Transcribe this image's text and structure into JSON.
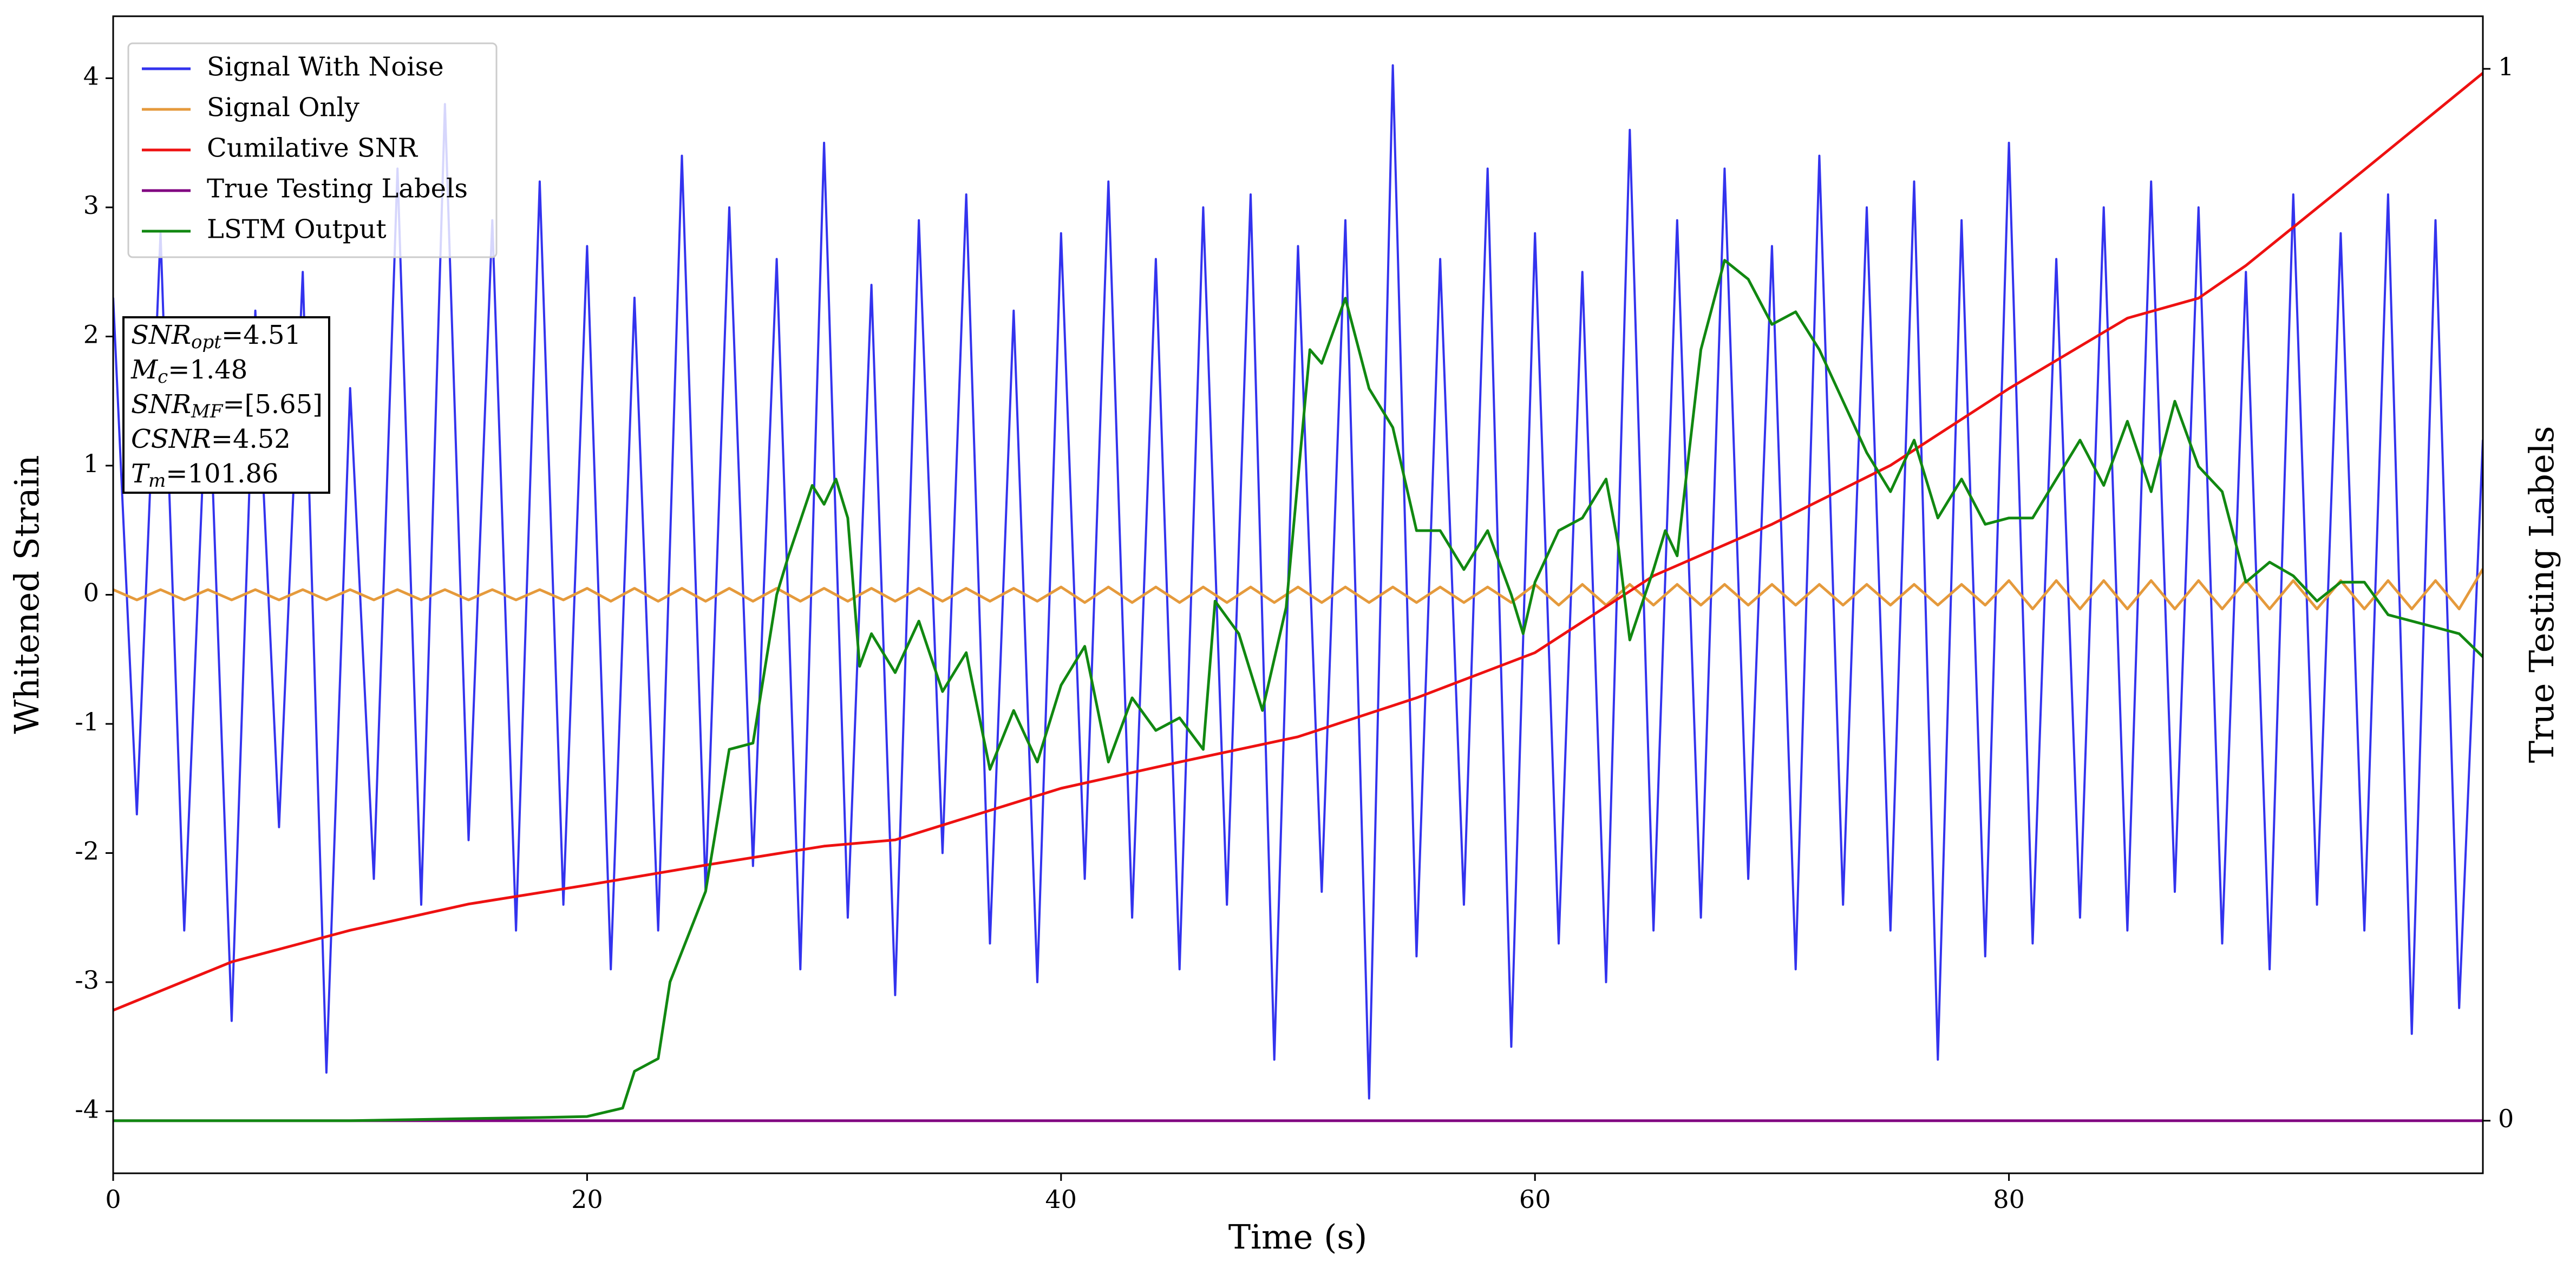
{
  "chart_data": {
    "type": "line",
    "x_label": "Time (s)",
    "y_label": "Whitened Strain",
    "y2_label": "True Testing Labels",
    "xlim": [
      0,
      100
    ],
    "xticks": [
      0,
      20,
      40,
      60,
      80
    ],
    "ylim": [
      -4.48,
      4.48
    ],
    "yticks": [
      -4,
      -3,
      -2,
      -1,
      0,
      1,
      2,
      3,
      4
    ],
    "y2lim": [
      -0.05,
      1.05
    ],
    "y2ticks": [
      0,
      1
    ],
    "legend": "upper left",
    "annotation": [
      {
        "main": "SNR",
        "sub": "opt",
        "rest": "=4.51"
      },
      {
        "main": "M",
        "sub": "c",
        "rest": "=1.48"
      },
      {
        "main": "SNR",
        "sub": "MF",
        "rest": "=[5.65]"
      },
      {
        "main": "CSNR",
        "rest": "=4.52"
      },
      {
        "main": "T",
        "sub": "m",
        "rest": "=101.86"
      }
    ],
    "series": [
      {
        "name": "Signal With Noise",
        "color": "#3333ee",
        "x": [
          0,
          1,
          2,
          3,
          4,
          5,
          6,
          7,
          8,
          9,
          10,
          11,
          12,
          13,
          14,
          15,
          16,
          17,
          18,
          19,
          20,
          21,
          22,
          23,
          24,
          25,
          26,
          27,
          28,
          29,
          30,
          31,
          32,
          33,
          34,
          35,
          36,
          37,
          38,
          39,
          40,
          41,
          42,
          43,
          44,
          45,
          46,
          47,
          48,
          49,
          50,
          51,
          52,
          53,
          54,
          55,
          56,
          57,
          58,
          59,
          60,
          61,
          62,
          63,
          64,
          65,
          66,
          67,
          68,
          69,
          70,
          71,
          72,
          73,
          74,
          75,
          76,
          77,
          78,
          79,
          80,
          81,
          82,
          83,
          84,
          85,
          86,
          87,
          88,
          89,
          90,
          91,
          92,
          93,
          94,
          95,
          96,
          97,
          98,
          99,
          100
        ],
        "values": [
          2.3,
          -1.7,
          2.8,
          -2.6,
          1.9,
          -3.3,
          2.2,
          -1.8,
          2.5,
          -3.7,
          1.6,
          -2.2,
          3.3,
          -2.4,
          3.8,
          -1.9,
          2.9,
          -2.6,
          3.2,
          -2.4,
          2.7,
          -2.9,
          2.3,
          -2.6,
          3.4,
          -2.3,
          3.0,
          -2.1,
          2.6,
          -2.9,
          3.5,
          -2.5,
          2.4,
          -3.1,
          2.9,
          -2.0,
          3.1,
          -2.7,
          2.2,
          -3.0,
          2.8,
          -2.2,
          3.2,
          -2.5,
          2.6,
          -2.9,
          3.0,
          -2.4,
          3.1,
          -3.6,
          2.7,
          -2.3,
          2.9,
          -3.9,
          4.1,
          -2.8,
          2.6,
          -2.4,
          3.3,
          -3.5,
          2.8,
          -2.7,
          2.5,
          -3.0,
          3.6,
          -2.6,
          2.9,
          -2.5,
          3.3,
          -2.2,
          2.7,
          -2.9,
          3.4,
          -2.4,
          3.0,
          -2.6,
          3.2,
          -3.6,
          2.9,
          -2.8,
          3.5,
          -2.7,
          2.6,
          -2.5,
          3.0,
          -2.6,
          3.2,
          -2.3,
          3.0,
          -2.7,
          2.5,
          -2.9,
          3.1,
          -2.4,
          2.8,
          -2.6,
          3.1,
          -3.4,
          2.9,
          -3.2,
          1.2
        ]
      },
      {
        "name": "Signal Only",
        "color": "#e59a3c",
        "x": [
          0,
          1,
          2,
          3,
          4,
          5,
          6,
          7,
          8,
          9,
          10,
          11,
          12,
          13,
          14,
          15,
          16,
          17,
          18,
          19,
          20,
          21,
          22,
          23,
          24,
          25,
          26,
          27,
          28,
          29,
          30,
          31,
          32,
          33,
          34,
          35,
          36,
          37,
          38,
          39,
          40,
          41,
          42,
          43,
          44,
          45,
          46,
          47,
          48,
          49,
          50,
          51,
          52,
          53,
          54,
          55,
          56,
          57,
          58,
          59,
          60,
          61,
          62,
          63,
          64,
          65,
          66,
          67,
          68,
          69,
          70,
          71,
          72,
          73,
          74,
          75,
          76,
          77,
          78,
          79,
          80,
          81,
          82,
          83,
          84,
          85,
          86,
          87,
          88,
          89,
          90,
          91,
          92,
          93,
          94,
          95,
          96,
          97,
          98,
          99,
          100
        ],
        "values": [
          0.04,
          -0.04,
          0.04,
          -0.04,
          0.04,
          -0.04,
          0.04,
          -0.04,
          0.04,
          -0.04,
          0.04,
          -0.04,
          0.04,
          -0.04,
          0.04,
          -0.04,
          0.04,
          -0.04,
          0.04,
          -0.04,
          0.05,
          -0.05,
          0.05,
          -0.05,
          0.05,
          -0.05,
          0.05,
          -0.05,
          0.05,
          -0.05,
          0.05,
          -0.05,
          0.05,
          -0.05,
          0.05,
          -0.05,
          0.05,
          -0.05,
          0.05,
          -0.05,
          0.06,
          -0.06,
          0.06,
          -0.06,
          0.06,
          -0.06,
          0.06,
          -0.06,
          0.06,
          -0.06,
          0.06,
          -0.06,
          0.06,
          -0.06,
          0.06,
          -0.06,
          0.06,
          -0.06,
          0.06,
          -0.06,
          0.08,
          -0.08,
          0.08,
          -0.08,
          0.08,
          -0.08,
          0.08,
          -0.08,
          0.08,
          -0.08,
          0.08,
          -0.08,
          0.08,
          -0.08,
          0.08,
          -0.08,
          0.08,
          -0.08,
          0.08,
          -0.08,
          0.11,
          -0.11,
          0.11,
          -0.11,
          0.11,
          -0.11,
          0.11,
          -0.11,
          0.11,
          -0.11,
          0.11,
          -0.11,
          0.11,
          -0.11,
          0.11,
          -0.11,
          0.11,
          -0.11,
          0.11,
          -0.11,
          0.2
        ]
      },
      {
        "name": "Cumilative SNR",
        "color": "#ee1111",
        "axis": "y2",
        "x": [
          0,
          5,
          10,
          15,
          20,
          25,
          30,
          33,
          40,
          45,
          50,
          55,
          60,
          65,
          70,
          75,
          80,
          85,
          88,
          90,
          95,
          100
        ],
        "values": [
          0.105,
          0.151,
          0.181,
          0.206,
          0.224,
          0.243,
          0.261,
          0.267,
          0.316,
          0.341,
          0.365,
          0.402,
          0.445,
          0.518,
          0.567,
          0.623,
          0.696,
          0.763,
          0.782,
          0.813,
          0.904,
          0.996
        ]
      },
      {
        "name": "True Testing Labels",
        "color": "#800080",
        "axis": "y2",
        "x": [
          0,
          100
        ],
        "values": [
          0,
          0
        ]
      },
      {
        "name": "LSTM Output",
        "color": "#118811",
        "axis": "y2",
        "x": [
          0,
          5,
          10,
          15,
          18,
          20,
          21.5,
          22,
          23,
          23.5,
          25,
          26,
          27,
          28,
          28.5,
          29.5,
          30,
          30.5,
          31,
          31.5,
          32,
          33,
          34,
          35,
          36,
          37,
          38,
          39,
          40,
          41,
          42,
          43,
          44,
          45,
          46,
          46.5,
          47.5,
          48.5,
          49.5,
          50.5,
          51,
          52,
          53,
          54,
          55,
          56,
          57,
          58,
          59,
          59.5,
          60,
          61,
          62,
          63,
          63.5,
          64,
          65,
          65.5,
          66,
          67,
          68,
          69,
          70,
          71,
          72,
          73,
          74,
          75,
          76,
          77,
          78,
          79,
          80,
          81,
          82,
          83,
          84,
          85,
          86,
          87,
          88,
          89,
          90,
          91,
          92,
          93,
          94,
          95,
          96,
          97,
          98,
          99,
          100
        ],
        "values": [
          0,
          0,
          0,
          0.002,
          0.003,
          0.004,
          0.012,
          0.047,
          0.059,
          0.132,
          0.218,
          0.353,
          0.359,
          0.5,
          0.537,
          0.604,
          0.586,
          0.61,
          0.573,
          0.432,
          0.463,
          0.426,
          0.475,
          0.408,
          0.445,
          0.334,
          0.39,
          0.341,
          0.414,
          0.451,
          0.341,
          0.402,
          0.371,
          0.383,
          0.353,
          0.494,
          0.463,
          0.39,
          0.488,
          0.733,
          0.72,
          0.782,
          0.696,
          0.659,
          0.561,
          0.561,
          0.524,
          0.561,
          0.5,
          0.463,
          0.512,
          0.561,
          0.573,
          0.61,
          0.549,
          0.457,
          0.524,
          0.561,
          0.537,
          0.733,
          0.818,
          0.8,
          0.757,
          0.769,
          0.733,
          0.684,
          0.635,
          0.598,
          0.647,
          0.573,
          0.61,
          0.567,
          0.573,
          0.573,
          0.61,
          0.647,
          0.604,
          0.665,
          0.598,
          0.684,
          0.622,
          0.598,
          0.512,
          0.531,
          0.518,
          0.494,
          0.512,
          0.512,
          0.481,
          0.475,
          0.469,
          0.463,
          0.441
        ]
      }
    ]
  }
}
